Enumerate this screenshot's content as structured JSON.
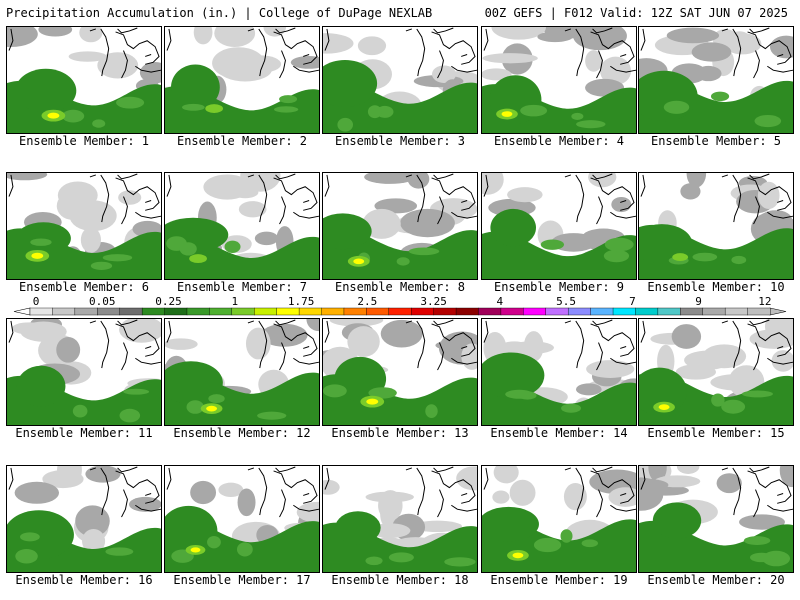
{
  "header": {
    "title": "Precipitation Accumulation (in.) | College of DuPage NEXLAB",
    "run": "00Z GEFS | F012 Valid: 12Z SAT JUN 07 2025"
  },
  "members": [
    {
      "label": "Ensemble Member: 1",
      "max": 1.2
    },
    {
      "label": "Ensemble Member: 2",
      "max": 0.9
    },
    {
      "label": "Ensemble Member: 3",
      "max": 0.6
    },
    {
      "label": "Ensemble Member: 4",
      "max": 1.1
    },
    {
      "label": "Ensemble Member: 5",
      "max": 0.7
    },
    {
      "label": "Ensemble Member: 6",
      "max": 1.2
    },
    {
      "label": "Ensemble Member: 7",
      "max": 0.9
    },
    {
      "label": "Ensemble Member: 8",
      "max": 1.1
    },
    {
      "label": "Ensemble Member: 9",
      "max": 0.6
    },
    {
      "label": "Ensemble Member: 10",
      "max": 0.8
    },
    {
      "label": "Ensemble Member: 11",
      "max": 0.5
    },
    {
      "label": "Ensemble Member: 12",
      "max": 1.1
    },
    {
      "label": "Ensemble Member: 13",
      "max": 1.2
    },
    {
      "label": "Ensemble Member: 14",
      "max": 0.6
    },
    {
      "label": "Ensemble Member: 15",
      "max": 1.1
    },
    {
      "label": "Ensemble Member: 16",
      "max": 0.5
    },
    {
      "label": "Ensemble Member: 17",
      "max": 1.0
    },
    {
      "label": "Ensemble Member: 18",
      "max": 0.6
    },
    {
      "label": "Ensemble Member: 19",
      "max": 1.1
    },
    {
      "label": "Ensemble Member: 20",
      "max": 0.5
    }
  ],
  "legend": {
    "tick_labels": [
      "0",
      "0.05",
      "0.25",
      "1",
      "1.75",
      "2.5",
      "3.25",
      "4",
      "5.5",
      "7",
      "9",
      "12"
    ],
    "colors": [
      "#e6e6e6",
      "#c8c8c8",
      "#aaaaaa",
      "#8c8c8c",
      "#6e6e6e",
      "#2e8b22",
      "#1f6f1a",
      "#3a9a2a",
      "#4fb030",
      "#7acb2a",
      "#c8f000",
      "#ffff00",
      "#ffd700",
      "#ffb000",
      "#ff8000",
      "#ff5a00",
      "#ff2000",
      "#e00000",
      "#b40000",
      "#8c0000",
      "#a0005a",
      "#d0008c",
      "#ff00ff",
      "#c070ff",
      "#8c8cff",
      "#5ab4ff",
      "#00e6ff",
      "#00cccc",
      "#50c8c8",
      "#8c8c8c",
      "#aaaaaa",
      "#c8c8c8",
      "#bebebe"
    ]
  },
  "colors": {
    "land_light": "#d4d4d4",
    "land_mid": "#a8a8a8",
    "green_dark": "#2e8b22",
    "green_mid": "#4fa83a",
    "green_light": "#7acb2a",
    "yellow": "#ffff00",
    "coast": "#000000"
  }
}
